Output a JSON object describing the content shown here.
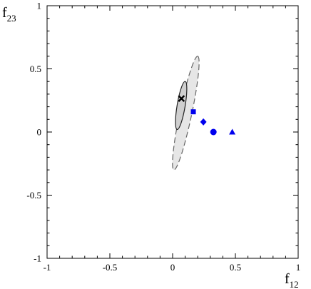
{
  "chart_data": {
    "type": "scatter",
    "title": "",
    "xlabel": "f",
    "xlabel_sub": "12",
    "ylabel": "f",
    "ylabel_sub": "23",
    "xlim": [
      -1,
      1
    ],
    "ylim": [
      -1,
      1
    ],
    "x_ticks": [
      -1,
      -0.5,
      0,
      0.5,
      1
    ],
    "x_tick_labels": [
      "-1",
      "-0.5",
      "0",
      "0.5",
      "1"
    ],
    "y_ticks": [
      -1,
      -0.5,
      0,
      0.5,
      1
    ],
    "y_tick_labels": [
      "-1",
      "-0.5",
      "0",
      "0.5",
      "1"
    ],
    "minor_tick_step": 0.1,
    "grid": false,
    "best_fit": {
      "marker": "cross",
      "color": "#000000",
      "x": 0.07,
      "y": 0.265
    },
    "contours": [
      {
        "level": "outer",
        "style": "dashed",
        "fill": "#e6e6e6",
        "stroke": "#666666",
        "center": [
          0.105,
          0.15
        ],
        "major_endpoints": [
          [
            0.2,
            0.6
          ],
          [
            0.01,
            -0.3
          ]
        ],
        "minor_half_width": 0.048
      },
      {
        "level": "inner",
        "style": "solid",
        "fill": "#cfcfcf",
        "stroke": "#222222",
        "center": [
          0.068,
          0.21
        ],
        "major_endpoints": [
          [
            0.1,
            0.4
          ],
          [
            0.036,
            0.02
          ]
        ],
        "minor_half_width": 0.032
      }
    ],
    "series": [
      {
        "marker": "square",
        "color": "#0000ee",
        "x": 0.165,
        "y": 0.16
      },
      {
        "marker": "diamond",
        "color": "#0000ee",
        "x": 0.245,
        "y": 0.08
      },
      {
        "marker": "circle",
        "color": "#0000ee",
        "x": 0.325,
        "y": 0.0
      },
      {
        "marker": "triangle",
        "color": "#0000ee",
        "x": 0.475,
        "y": 0.0
      }
    ]
  }
}
